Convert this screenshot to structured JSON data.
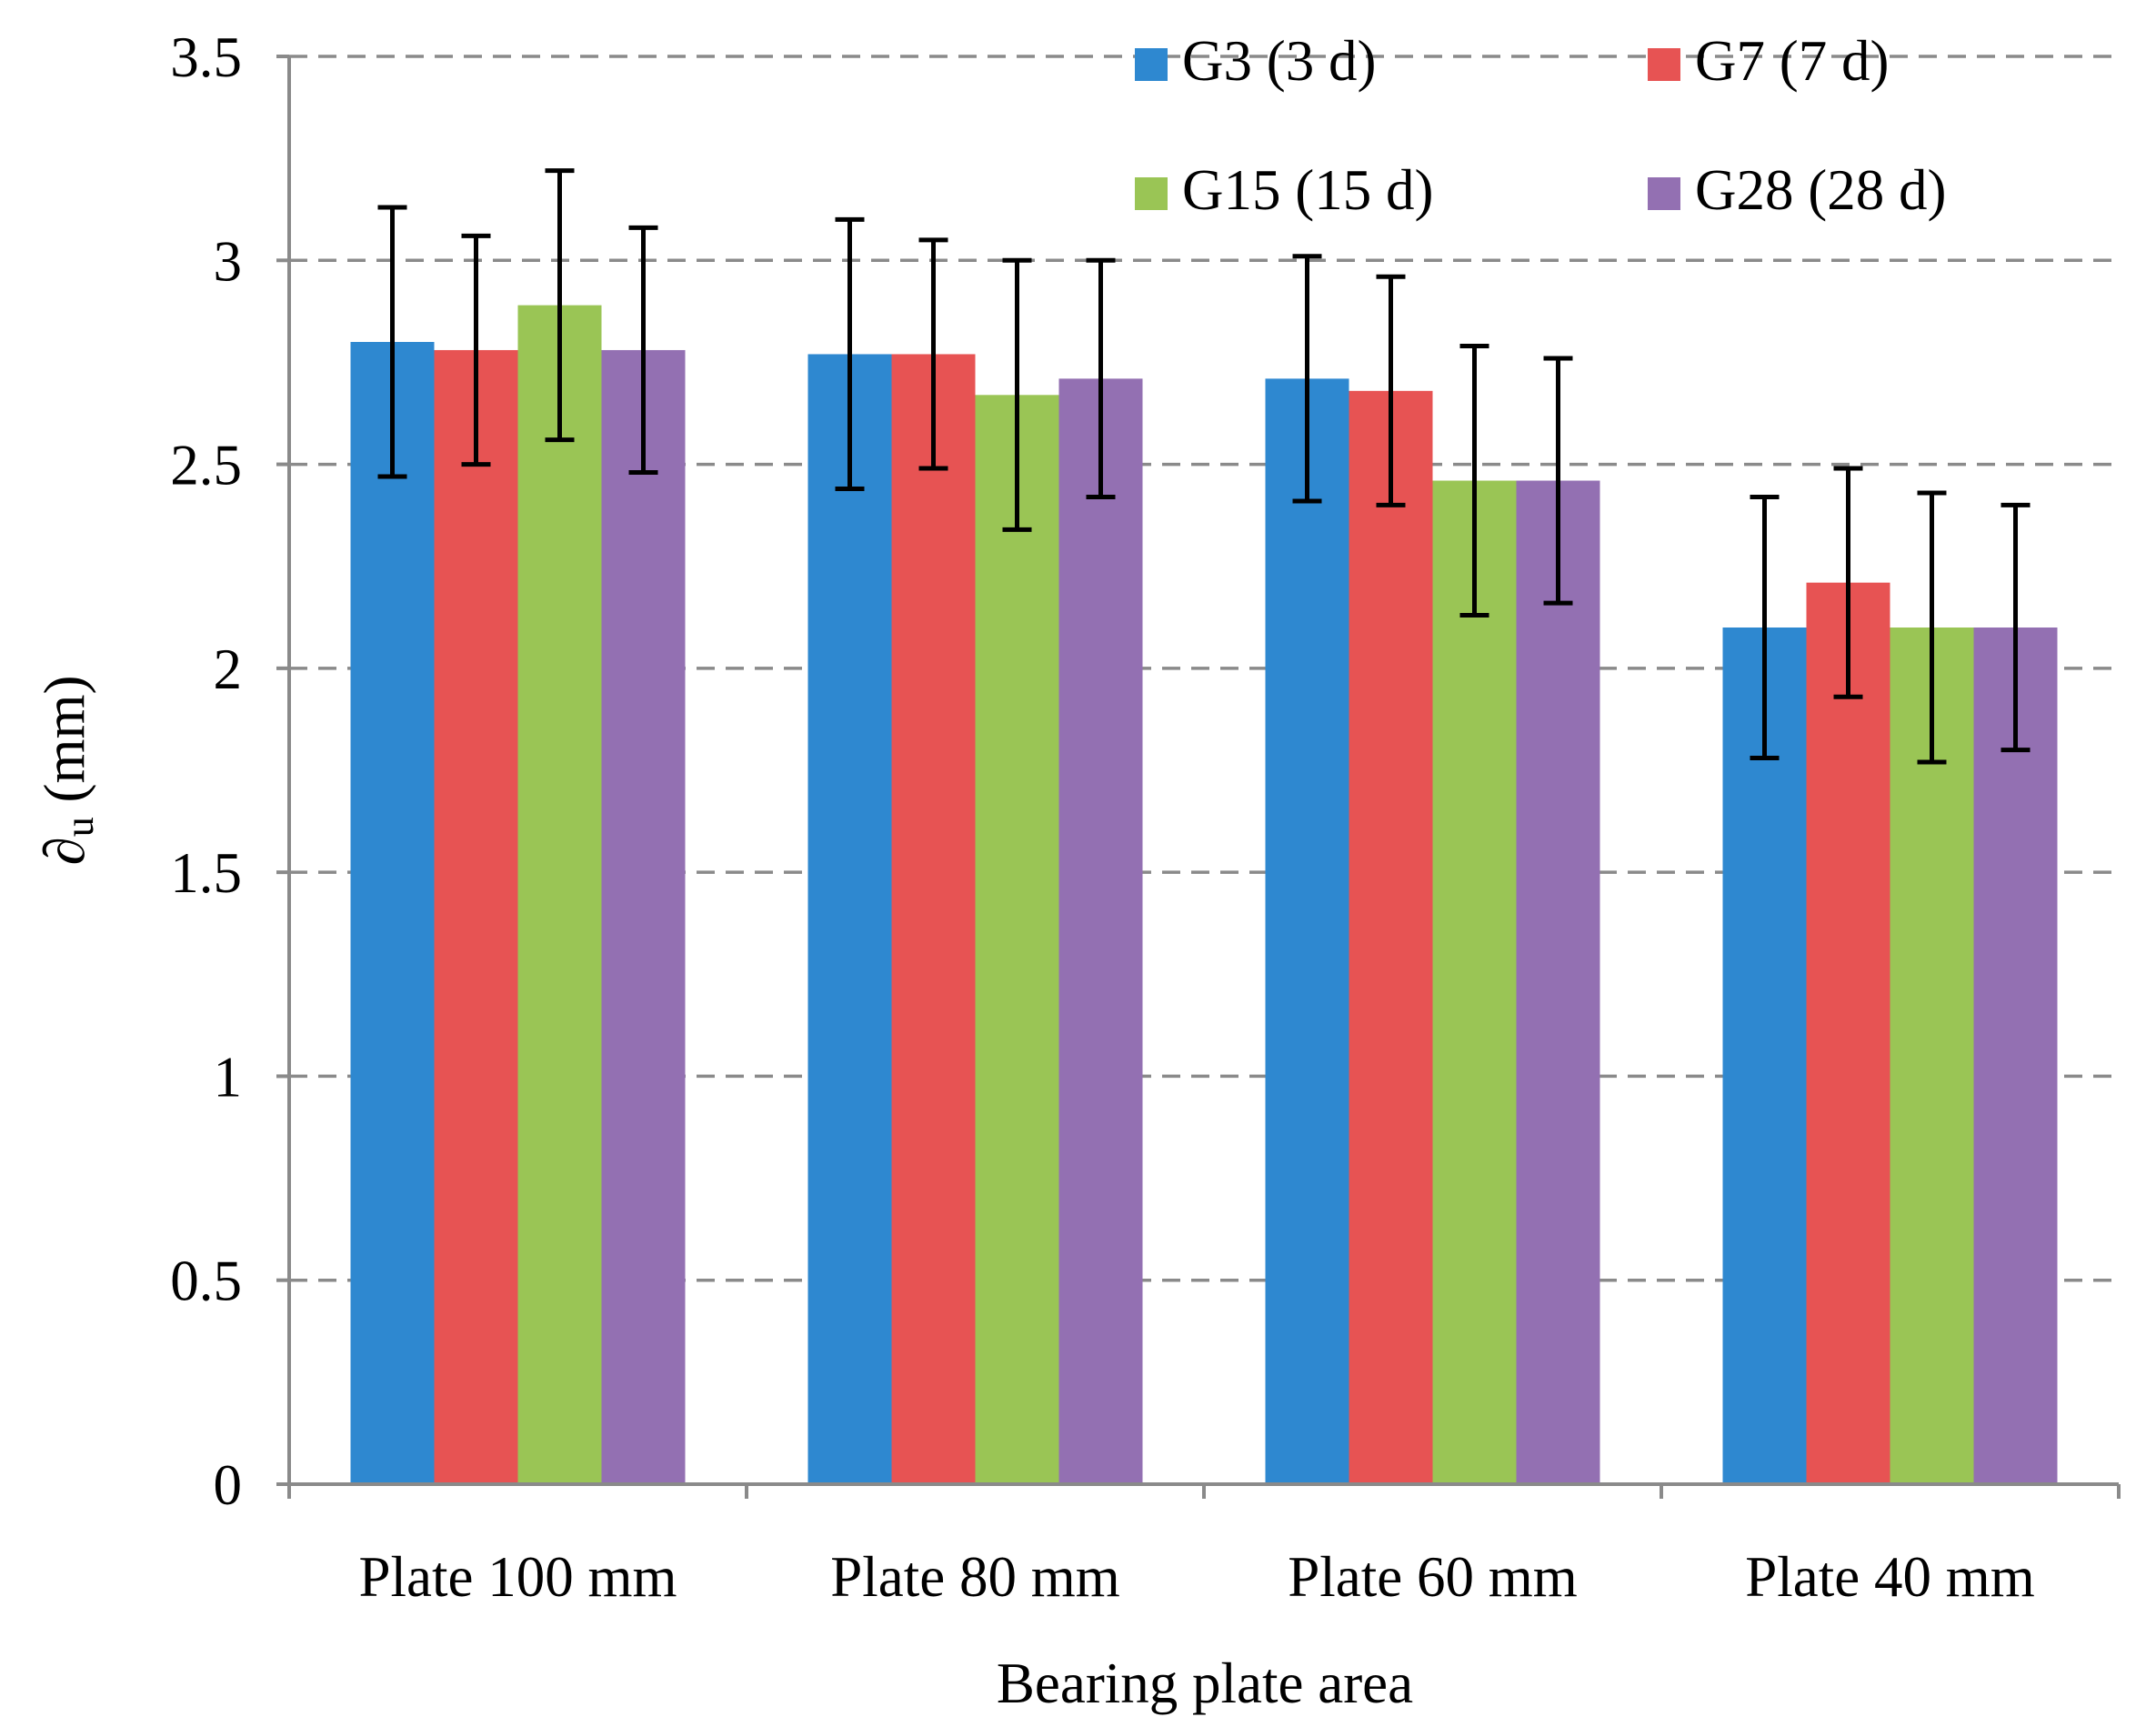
{
  "chart_data": {
    "type": "bar",
    "title": "",
    "xlabel": "Bearing plate area",
    "ylabel_symbol": "∂",
    "ylabel_subscript": "u",
    "ylabel_unit": " (mm)",
    "ylim": [
      0,
      3.5
    ],
    "y_ticks": [
      "0",
      "0.5",
      "1",
      "1.5",
      "2",
      "2.5",
      "3",
      "3.5"
    ],
    "y_tick_values": [
      0,
      0.5,
      1,
      1.5,
      2,
      2.5,
      3,
      3.5
    ],
    "grid": "dashed-horizontal",
    "legend_position": "top-right",
    "categories": [
      "Plate 100 mm",
      "Plate 80 mm",
      "Plate 60 mm",
      "Plate 40 mm"
    ],
    "series": [
      {
        "name": "G3 (3 d)",
        "color": "#2E88D0",
        "values": [
          2.8,
          2.77,
          2.71,
          2.1
        ],
        "errors": [
          0.33,
          0.33,
          0.3,
          0.32
        ]
      },
      {
        "name": "G7 (7 d)",
        "color": "#E75353",
        "values": [
          2.78,
          2.77,
          2.68,
          2.21
        ],
        "errors": [
          0.28,
          0.28,
          0.28,
          0.28
        ]
      },
      {
        "name": "G15 (15 d)",
        "color": "#9AC555",
        "values": [
          2.89,
          2.67,
          2.46,
          2.1
        ],
        "errors": [
          0.33,
          0.33,
          0.33,
          0.33
        ]
      },
      {
        "name": "G28 (28 d)",
        "color": "#9370B2",
        "values": [
          2.78,
          2.71,
          2.46,
          2.1
        ],
        "errors": [
          0.3,
          0.29,
          0.3,
          0.3
        ]
      }
    ]
  }
}
